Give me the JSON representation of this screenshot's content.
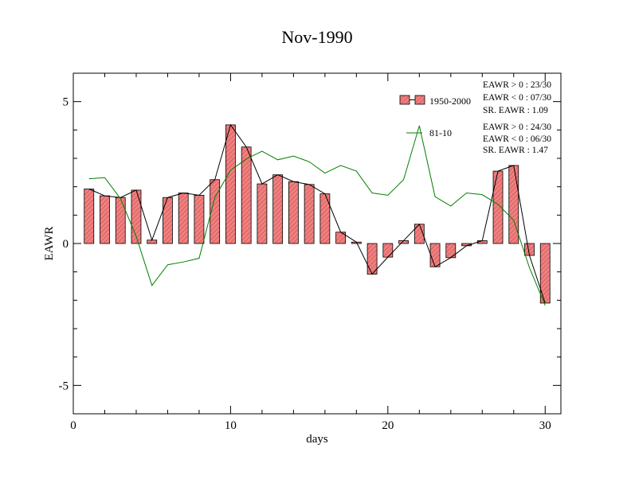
{
  "chart_data": {
    "type": "bar",
    "title": "Nov-1990",
    "xlabel": "days",
    "ylabel": "EAWR",
    "xlim": [
      0,
      31
    ],
    "ylim": [
      -6,
      6
    ],
    "x_ticks": [
      0,
      10,
      20,
      30
    ],
    "y_ticks": [
      -5,
      0,
      5
    ],
    "y_tick_labels": [
      "-5",
      "0",
      "5"
    ],
    "grid": false,
    "legend_position": "top-right",
    "colors": {
      "bar_fill": "#f08080",
      "bar_stroke": "#000000",
      "line_1950": "#000000",
      "line_8110": "#008000"
    },
    "series": [
      {
        "name": "1950-2000",
        "kind": "bar+line",
        "x": [
          1,
          2,
          3,
          4,
          5,
          6,
          7,
          8,
          9,
          10,
          11,
          12,
          13,
          14,
          15,
          16,
          17,
          18,
          19,
          20,
          21,
          22,
          23,
          24,
          25,
          26,
          27,
          28,
          29,
          30
        ],
        "values": [
          1.92,
          1.68,
          1.62,
          1.88,
          0.12,
          1.62,
          1.78,
          1.7,
          2.25,
          4.18,
          3.4,
          2.1,
          2.42,
          2.18,
          2.08,
          1.75,
          0.4,
          0.05,
          -1.08,
          -0.48,
          0.1,
          0.68,
          -0.82,
          -0.5,
          -0.08,
          0.1,
          2.55,
          2.75,
          -0.42,
          -2.1
        ]
      },
      {
        "name": "81-10",
        "kind": "line",
        "x": [
          1,
          2,
          3,
          4,
          5,
          6,
          7,
          8,
          9,
          10,
          11,
          12,
          13,
          14,
          15,
          16,
          17,
          18,
          19,
          20,
          21,
          22,
          23,
          24,
          25,
          26,
          27,
          28,
          29,
          30
        ],
        "values": [
          2.28,
          2.32,
          1.58,
          0.25,
          -1.48,
          -0.75,
          -0.65,
          -0.52,
          1.62,
          2.58,
          2.98,
          3.25,
          2.95,
          3.08,
          2.88,
          2.48,
          2.75,
          2.55,
          1.78,
          1.7,
          2.25,
          4.15,
          1.65,
          1.32,
          1.78,
          1.72,
          1.38,
          0.82,
          -0.85,
          -2.18
        ]
      }
    ],
    "stats": [
      {
        "series": "1950-2000",
        "lines": [
          "EAWR > 0 : 23/30",
          "EAWR < 0 : 07/30",
          "SR. EAWR :  1.09"
        ]
      },
      {
        "series": "81-10",
        "lines": [
          "EAWR > 0 : 24/30",
          "EAWR < 0 : 06/30",
          "SR. EAWR :  1.47"
        ]
      }
    ]
  }
}
